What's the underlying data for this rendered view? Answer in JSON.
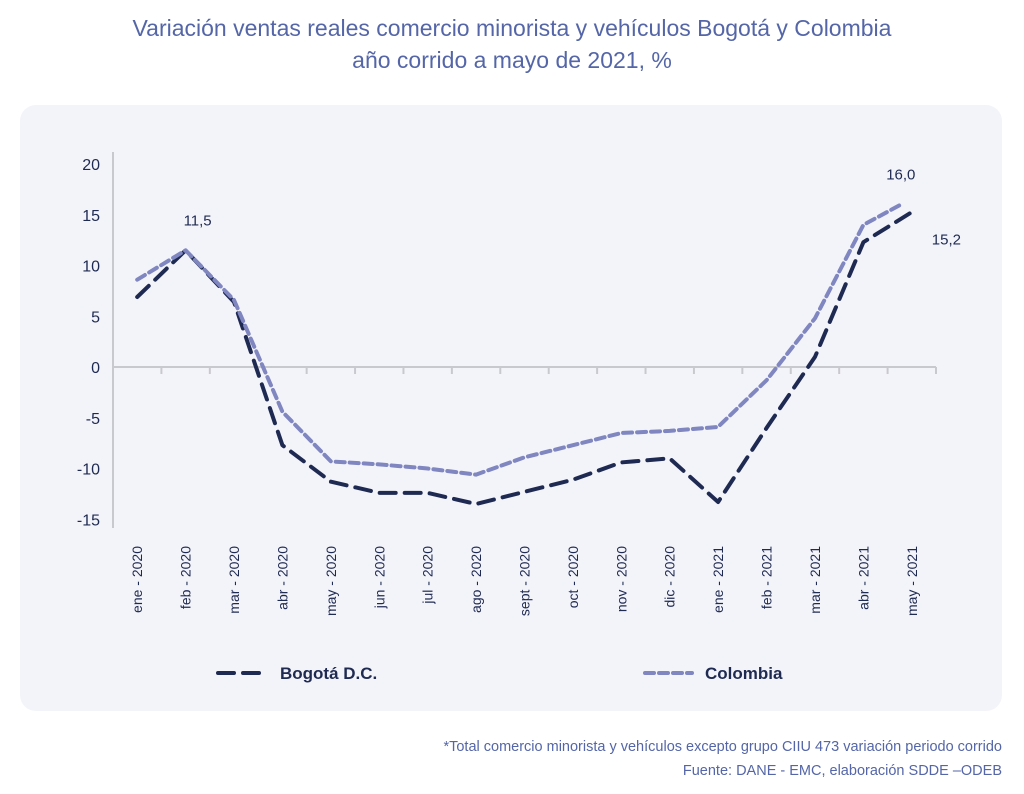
{
  "title": {
    "line1": "Variación ventas reales comercio minorista y vehículos Bogotá y Colombia",
    "line2": "año corrido a mayo de 2021, %"
  },
  "chart_data": {
    "type": "line",
    "title": "Variación ventas reales comercio minorista y vehículos Bogotá y Colombia año corrido a mayo de 2021, %",
    "xlabel": "",
    "ylabel": "",
    "categories": [
      "ene - 2020",
      "feb - 2020",
      "mar - 2020",
      "abr - 2020",
      "may - 2020",
      "jun - 2020",
      "jul - 2020",
      "ago - 2020",
      "sept - 2020",
      "oct - 2020",
      "nov - 2020",
      "dic - 2020",
      "ene - 2021",
      "feb - 2021",
      "mar - 2021",
      "abr - 2021",
      "may - 2021"
    ],
    "yticks": [
      "20",
      "15",
      "10",
      "5",
      "0",
      "-5",
      "-10",
      "-15"
    ],
    "ylim": [
      -15,
      20
    ],
    "grid": false,
    "legend_position": "bottom",
    "series": [
      {
        "name": "Bogotá D.C.",
        "color": "#1f2a52",
        "dash": "long-dash",
        "values": [
          6.9,
          11.5,
          6.4,
          -7.7,
          -11.3,
          -12.4,
          -12.4,
          -13.5,
          -12.3,
          -11.1,
          -9.4,
          -9.0,
          -13.3,
          -6.0,
          1.0,
          12.3,
          15.2
        ]
      },
      {
        "name": "Colombia",
        "color": "#7f86c0",
        "dash": "short-dash",
        "values": [
          8.6,
          11.5,
          6.6,
          -4.4,
          -9.3,
          -9.6,
          -10.0,
          -10.6,
          -8.9,
          -7.7,
          -6.5,
          -6.3,
          -5.9,
          -1.3,
          4.8,
          14.0,
          16.0
        ]
      }
    ],
    "annotations": [
      {
        "text": "11,5",
        "category": "feb - 2020",
        "series": "Bogotá D.C.",
        "position": "above"
      },
      {
        "text": "16,0",
        "category": "may - 2021",
        "series": "Colombia",
        "position": "above"
      },
      {
        "text": "15,2",
        "category": "may - 2021",
        "series": "Bogotá D.C.",
        "position": "below-right"
      }
    ]
  },
  "legend": [
    {
      "label": "Bogotá D.C."
    },
    {
      "label": "Colombia"
    }
  ],
  "footer": {
    "note": "*Total comercio minorista y vehículos excepto grupo CIIU 473 variación periodo corrido",
    "source": "Fuente: DANE - EMC, elaboración SDDE –ODEB"
  }
}
